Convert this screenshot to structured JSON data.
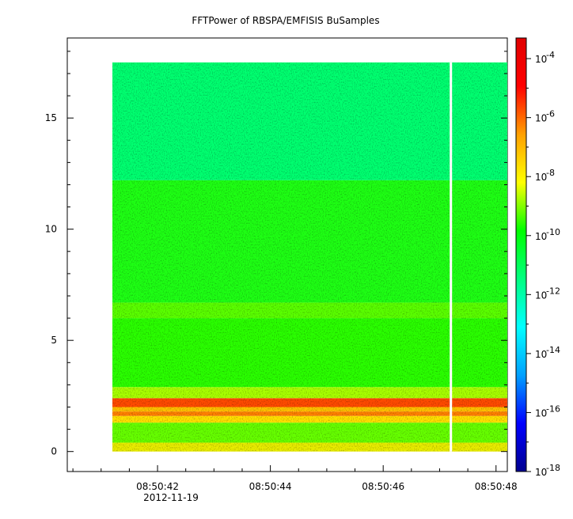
{
  "chart_data": {
    "type": "heatmap",
    "title": "FFTPower of RBSPA/EMFISIS  BuSamples",
    "xlabel": "",
    "ylabel": "",
    "date_label": "2012-11-19",
    "x_ticks": [
      "08:50:42",
      "08:50:44",
      "08:50:46",
      "08:50:48"
    ],
    "x_tick_values_s": [
      42,
      44,
      46,
      48
    ],
    "xlim_s": [
      40.4,
      48.2
    ],
    "data_xrange_s": [
      41.2,
      48.2
    ],
    "gap_x_s": 47.2,
    "y_ticks": [
      "0",
      "5",
      "10",
      "15"
    ],
    "y_tick_values": [
      0,
      5,
      10,
      15
    ],
    "ylim": [
      -0.9,
      18.6
    ],
    "data_yrange": [
      0,
      17.5
    ],
    "colorbar": {
      "scale": "log",
      "range_exponents": [
        -18,
        -3.3
      ],
      "tick_exponents": [
        -4,
        -6,
        -8,
        -10,
        -12,
        -14,
        -16,
        -18
      ],
      "tick_labels": [
        "10-4",
        "10-6",
        "10-8",
        "10-10",
        "10-12",
        "10-14",
        "10-16",
        "10-18"
      ],
      "base": "10",
      "exponents_text": [
        "-4",
        "-6",
        "-8",
        "-10",
        "-12",
        "-14",
        "-16",
        "-18"
      ],
      "colors": [
        "#00008f",
        "#0000ff",
        "#00a0ff",
        "#00ffff",
        "#00ff80",
        "#00ff00",
        "#ffff00",
        "#ffa000",
        "#ff0000",
        "#e00000"
      ]
    },
    "bands": [
      {
        "y_from": 0.0,
        "y_to": 0.4,
        "log_power": -8.8,
        "color": "#e8ec00"
      },
      {
        "y_from": 0.4,
        "y_to": 1.3,
        "log_power": -9.7,
        "color": "#66ff00"
      },
      {
        "y_from": 1.3,
        "y_to": 1.6,
        "log_power": -8.5,
        "color": "#ffe000"
      },
      {
        "y_from": 1.6,
        "y_to": 1.8,
        "log_power": -6.8,
        "color": "#ff8000"
      },
      {
        "y_from": 1.8,
        "y_to": 2.0,
        "log_power": -7.3,
        "color": "#ffc000"
      },
      {
        "y_from": 2.0,
        "y_to": 2.4,
        "log_power": -5.6,
        "color": "#ff4a00"
      },
      {
        "y_from": 2.4,
        "y_to": 2.9,
        "log_power": -9.4,
        "color": "#a8ff00"
      },
      {
        "y_from": 2.9,
        "y_to": 6.0,
        "log_power": -10.1,
        "color": "#2aff00"
      },
      {
        "y_from": 6.0,
        "y_to": 6.7,
        "log_power": -9.9,
        "color": "#5aff00"
      },
      {
        "y_from": 6.7,
        "y_to": 12.2,
        "log_power": -10.3,
        "color": "#1eff14"
      },
      {
        "y_from": 12.2,
        "y_to": 17.5,
        "log_power": -11.0,
        "color": "#00ff70"
      }
    ]
  }
}
